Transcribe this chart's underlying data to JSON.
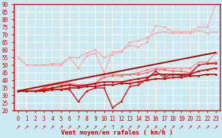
{
  "xlabel": "Vent moyen/en rafales ( km/h )",
  "bg_color": "#cbe9f0",
  "grid_color": "#ffffff",
  "x": [
    0,
    1,
    2,
    3,
    4,
    5,
    6,
    7,
    8,
    9,
    10,
    11,
    12,
    13,
    14,
    15,
    16,
    17,
    18,
    19,
    20,
    21,
    22,
    23
  ],
  "ylim": [
    20,
    90
  ],
  "yticks": [
    20,
    25,
    30,
    35,
    40,
    45,
    50,
    55,
    60,
    65,
    70,
    75,
    80,
    85,
    90
  ],
  "series": [
    {
      "name": "light1",
      "color": "#ffaaaa",
      "lw": 1.0,
      "marker": "o",
      "ms": 2.0,
      "y": [
        55,
        50,
        50,
        50,
        51,
        51,
        55,
        55,
        58,
        60,
        55,
        57,
        59,
        65,
        66,
        68,
        71,
        72,
        71,
        71,
        71,
        73,
        71,
        72
      ]
    },
    {
      "name": "light2",
      "color": "#ffaaaa",
      "lw": 1.0,
      "marker": "o",
      "ms": 2.0,
      "y": [
        55,
        50,
        50,
        50,
        50,
        50,
        55,
        48,
        56,
        58,
        45,
        59,
        59,
        63,
        62,
        65,
        76,
        75,
        72,
        72,
        72,
        75,
        75,
        90
      ]
    },
    {
      "name": "medium1",
      "color": "#ff8888",
      "lw": 1.0,
      "marker": "o",
      "ms": 2.0,
      "y": [
        33,
        33,
        33,
        35,
        37,
        38,
        38,
        37,
        37,
        38,
        44,
        44,
        44,
        44,
        45,
        47,
        48,
        48,
        48,
        48,
        48,
        52,
        52,
        58
      ]
    },
    {
      "name": "medium2",
      "color": "#ff6666",
      "lw": 1.0,
      "marker": "o",
      "ms": 2.0,
      "y": [
        33,
        33,
        33,
        35,
        37,
        37,
        37,
        37,
        37,
        38,
        42,
        43,
        43,
        44,
        44,
        45,
        47,
        47,
        46,
        46,
        45,
        50,
        51,
        52
      ]
    },
    {
      "name": "dark_wavy",
      "color": "#dd2222",
      "lw": 1.2,
      "marker": "o",
      "ms": 2.0,
      "y": [
        33,
        33,
        33,
        33,
        34,
        34,
        34,
        26,
        33,
        35,
        35,
        22,
        26,
        36,
        37,
        41,
        46,
        42,
        44,
        43,
        44,
        50,
        51,
        51
      ]
    },
    {
      "name": "dark_smooth1",
      "color": "#cc0000",
      "lw": 1.3,
      "marker": "o",
      "ms": 2.0,
      "y": [
        33,
        33,
        33,
        34,
        35,
        36,
        37,
        36,
        37,
        38,
        39,
        39,
        39,
        40,
        41,
        42,
        44,
        44,
        44,
        44,
        44,
        46,
        47,
        48
      ]
    },
    {
      "name": "dark_smooth2",
      "color": "#cc0000",
      "lw": 1.3,
      "marker": "o",
      "ms": 2.0,
      "y": [
        33,
        33,
        33,
        33,
        34,
        34,
        35,
        35,
        36,
        36,
        37,
        37,
        38,
        38,
        39,
        40,
        41,
        41,
        42,
        42,
        43,
        43,
        44,
        44
      ]
    },
    {
      "name": "dark_linear",
      "color": "#aa0000",
      "lw": 1.5,
      "marker": null,
      "ms": 0,
      "y": [
        33,
        34.1,
        35.2,
        36.3,
        37.4,
        38.5,
        39.6,
        40.7,
        41.8,
        42.9,
        44.0,
        45.1,
        46.2,
        47.3,
        48.4,
        49.5,
        50.6,
        51.7,
        52.8,
        53.9,
        55.0,
        56.1,
        57.2,
        58.3
      ]
    }
  ],
  "arrows": [
    "↗",
    "↗",
    "↗",
    "↗",
    "↗",
    "↗",
    "↗",
    "↗",
    "↗",
    "↗",
    "↗",
    "↑",
    "↗",
    "↗",
    "↗",
    "↗",
    "↗",
    "↗",
    "↗",
    "↗",
    "↗",
    "↗",
    "↗",
    "↗"
  ],
  "tick_label_fontsize": 5.5,
  "axis_label_fontsize": 6.5
}
